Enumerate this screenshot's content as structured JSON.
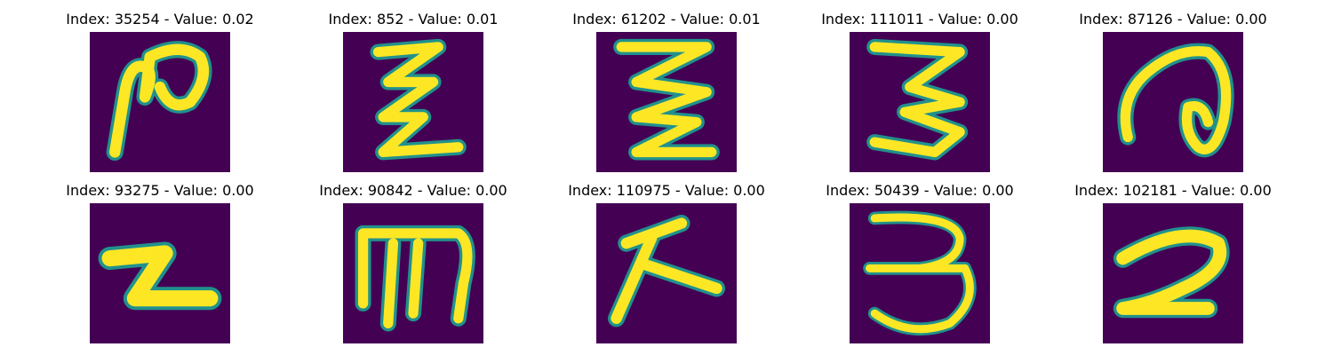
{
  "colors": {
    "background": "#440154",
    "stroke": "#fde725",
    "edge": "#21918c"
  },
  "panels": [
    {
      "title": "Index: 35254 - Value: 0.02",
      "glyph": "glyph-1"
    },
    {
      "title": "Index: 852 - Value: 0.01",
      "glyph": "glyph-2"
    },
    {
      "title": "Index: 61202 - Value: 0.01",
      "glyph": "glyph-3"
    },
    {
      "title": "Index: 111011 - Value: 0.00",
      "glyph": "glyph-4"
    },
    {
      "title": "Index: 87126 - Value: 0.00",
      "glyph": "glyph-5"
    },
    {
      "title": "Index: 93275 - Value: 0.00",
      "glyph": "glyph-6"
    },
    {
      "title": "Index: 90842 - Value: 0.00",
      "glyph": "glyph-7"
    },
    {
      "title": "Index: 110975 - Value: 0.00",
      "glyph": "glyph-8"
    },
    {
      "title": "Index: 50439 - Value: 0.00",
      "glyph": "glyph-9"
    },
    {
      "title": "Index: 102181 - Value: 0.00",
      "glyph": "glyph-10"
    }
  ]
}
